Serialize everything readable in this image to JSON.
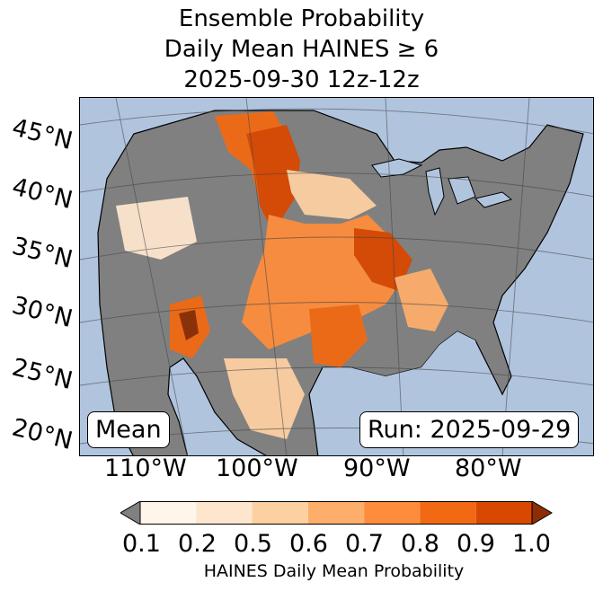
{
  "title": {
    "line1": "Ensemble Probability",
    "line2": "Daily Mean HAINES ≥ 6",
    "line3": "2025-09-30 12z-12z"
  },
  "map": {
    "latitude_labels": [
      "45°N",
      "40°N",
      "35°N",
      "30°N",
      "25°N",
      "20°N"
    ],
    "longitude_labels": [
      "110°W",
      "100°W",
      "90°W",
      "80°W"
    ],
    "stat_label": "Mean",
    "run_label": "Run: 2025-09-29",
    "colors": {
      "ocean": "#b0c4de",
      "land_below_threshold": "#808080"
    }
  },
  "colorbar": {
    "label": "HAINES Daily Mean Probability",
    "ticks": [
      "0.1",
      "0.2",
      "0.5",
      "0.6",
      "0.7",
      "0.8",
      "0.9",
      "1.0"
    ],
    "colors": [
      "#fff5eb",
      "#fee6ce",
      "#fdd0a2",
      "#fdae6b",
      "#fd8d3c",
      "#f16913",
      "#d94801",
      "#8c2d04"
    ],
    "under_color": "#808080",
    "over_color": "#8c2d04"
  }
}
